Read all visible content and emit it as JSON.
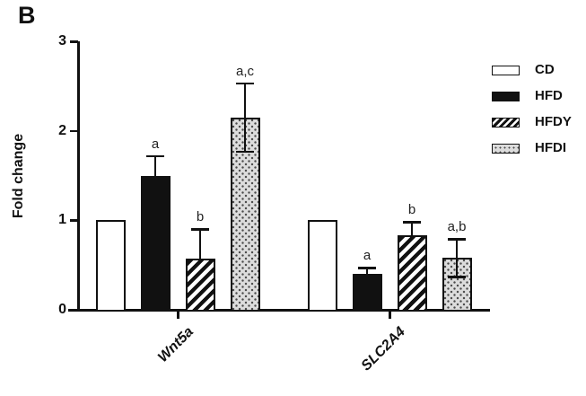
{
  "panel_label": "B",
  "chart_data": {
    "type": "bar",
    "title": "",
    "xlabel": "",
    "ylabel": "Fold change",
    "ylim": [
      0,
      3
    ],
    "yticks": [
      0,
      1,
      2,
      3
    ],
    "grid": false,
    "legend_position": "top-right",
    "categories": [
      "Wnt5a",
      "SLC2A4"
    ],
    "series": [
      {
        "name": "CD",
        "pattern": "open",
        "values": [
          1.0,
          1.0
        ],
        "errors": [
          null,
          null
        ],
        "sig": [
          "",
          ""
        ]
      },
      {
        "name": "HFD",
        "pattern": "solid",
        "values": [
          1.5,
          0.4
        ],
        "errors": [
          0.22,
          0.07
        ],
        "sig": [
          "a",
          "a"
        ]
      },
      {
        "name": "HFDY",
        "pattern": "hatch",
        "values": [
          0.57,
          0.83
        ],
        "errors": [
          0.33,
          0.15
        ],
        "sig": [
          "b",
          "b"
        ]
      },
      {
        "name": "HFDI",
        "pattern": "dots",
        "values": [
          2.15,
          0.58
        ],
        "errors": [
          0.38,
          0.21
        ],
        "sig": [
          "a,c",
          "a,b"
        ],
        "show_lower_cap": true
      }
    ],
    "legend_entries": [
      "CD",
      "HFD",
      "HFDY",
      "HFDI"
    ],
    "colors": {
      "axis": "#111111",
      "bar_outline": "#111111",
      "solid_fill": "#111111",
      "dots_fill": "#dcdcdc",
      "background": "#ffffff"
    }
  }
}
